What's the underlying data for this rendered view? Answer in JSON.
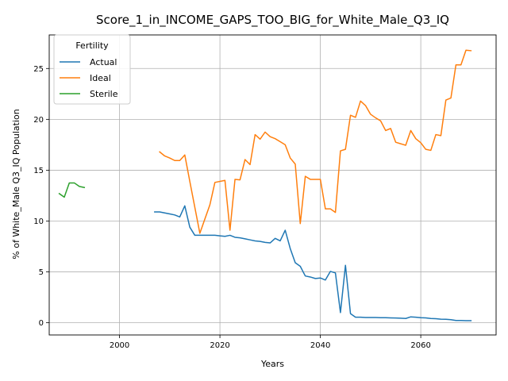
{
  "chart_data": {
    "type": "line",
    "title": "Score_1_in_INCOME_GAPS_TOO_BIG_for_White_Male_Q3_IQ",
    "xlabel": "Years",
    "ylabel": "% of White_Male Q3_IQ Population",
    "xlim": [
      1986,
      2075
    ],
    "ylim": [
      -1.2,
      28.3
    ],
    "xticks": [
      2000,
      2020,
      2040,
      2060
    ],
    "yticks": [
      0,
      5,
      10,
      15,
      20,
      25
    ],
    "grid": true,
    "legend": {
      "title": "Fertility",
      "position": "top-left"
    },
    "series": [
      {
        "name": "Actual",
        "color": "#1f77b4",
        "points": [
          [
            2007,
            10.9
          ],
          [
            2008,
            10.9
          ],
          [
            2009,
            10.8
          ],
          [
            2010,
            10.7
          ],
          [
            2011,
            10.6
          ],
          [
            2012,
            10.4
          ],
          [
            2013,
            11.5
          ],
          [
            2014,
            9.4
          ],
          [
            2015,
            8.6
          ],
          [
            2016,
            8.6
          ],
          [
            2017,
            8.6
          ],
          [
            2018,
            8.6
          ],
          [
            2019,
            8.6
          ],
          [
            2020,
            8.55
          ],
          [
            2021,
            8.5
          ],
          [
            2022,
            8.6
          ],
          [
            2023,
            8.4
          ],
          [
            2024,
            8.35
          ],
          [
            2025,
            8.25
          ],
          [
            2026,
            8.15
          ],
          [
            2027,
            8.05
          ],
          [
            2028,
            8.0
          ],
          [
            2029,
            7.9
          ],
          [
            2030,
            7.85
          ],
          [
            2031,
            8.3
          ],
          [
            2032,
            8.05
          ],
          [
            2033,
            9.1
          ],
          [
            2034,
            7.3
          ],
          [
            2035,
            5.9
          ],
          [
            2036,
            5.55
          ],
          [
            2037,
            4.6
          ],
          [
            2038,
            4.5
          ],
          [
            2039,
            4.35
          ],
          [
            2040,
            4.4
          ],
          [
            2041,
            4.2
          ],
          [
            2042,
            5.05
          ],
          [
            2043,
            4.9
          ],
          [
            2044,
            1.0
          ],
          [
            2045,
            5.65
          ],
          [
            2046,
            0.9
          ],
          [
            2047,
            0.55
          ],
          [
            2048,
            0.55
          ],
          [
            2049,
            0.52
          ],
          [
            2050,
            0.52
          ],
          [
            2051,
            0.52
          ],
          [
            2052,
            0.5
          ],
          [
            2053,
            0.5
          ],
          [
            2054,
            0.48
          ],
          [
            2055,
            0.47
          ],
          [
            2056,
            0.45
          ],
          [
            2057,
            0.42
          ],
          [
            2058,
            0.58
          ],
          [
            2059,
            0.55
          ],
          [
            2060,
            0.5
          ],
          [
            2061,
            0.48
          ],
          [
            2062,
            0.42
          ],
          [
            2063,
            0.4
          ],
          [
            2064,
            0.35
          ],
          [
            2065,
            0.34
          ],
          [
            2066,
            0.3
          ],
          [
            2067,
            0.22
          ],
          [
            2068,
            0.22
          ],
          [
            2069,
            0.2
          ],
          [
            2070,
            0.2
          ]
        ]
      },
      {
        "name": "Ideal",
        "color": "#ff7f0e",
        "points": [
          [
            2008,
            16.8
          ],
          [
            2009,
            16.4
          ],
          [
            2010,
            16.2
          ],
          [
            2011,
            15.95
          ],
          [
            2012,
            15.95
          ],
          [
            2013,
            16.5
          ],
          [
            2014,
            13.9
          ],
          [
            2016,
            8.8
          ],
          [
            2018,
            11.6
          ],
          [
            2019,
            13.8
          ],
          [
            2021,
            14.0
          ],
          [
            2022,
            9.1
          ],
          [
            2023,
            14.1
          ],
          [
            2024,
            14.05
          ],
          [
            2025,
            16.05
          ],
          [
            2026,
            15.55
          ],
          [
            2027,
            18.5
          ],
          [
            2028,
            18.05
          ],
          [
            2029,
            18.75
          ],
          [
            2030,
            18.3
          ],
          [
            2031,
            18.1
          ],
          [
            2032,
            17.8
          ],
          [
            2033,
            17.5
          ],
          [
            2034,
            16.2
          ],
          [
            2035,
            15.6
          ],
          [
            2036,
            9.75
          ],
          [
            2037,
            14.4
          ],
          [
            2038,
            14.1
          ],
          [
            2039,
            14.1
          ],
          [
            2040,
            14.1
          ],
          [
            2041,
            11.2
          ],
          [
            2042,
            11.2
          ],
          [
            2043,
            10.85
          ],
          [
            2044,
            16.9
          ],
          [
            2045,
            17.05
          ],
          [
            2046,
            20.4
          ],
          [
            2047,
            20.2
          ],
          [
            2048,
            21.8
          ],
          [
            2049,
            21.35
          ],
          [
            2050,
            20.5
          ],
          [
            2051,
            20.15
          ],
          [
            2052,
            19.85
          ],
          [
            2053,
            18.9
          ],
          [
            2054,
            19.1
          ],
          [
            2055,
            17.75
          ],
          [
            2056,
            17.6
          ],
          [
            2057,
            17.45
          ],
          [
            2058,
            18.9
          ],
          [
            2059,
            18.1
          ],
          [
            2060,
            17.7
          ],
          [
            2061,
            17.05
          ],
          [
            2062,
            16.95
          ],
          [
            2063,
            18.5
          ],
          [
            2064,
            18.4
          ],
          [
            2065,
            21.9
          ],
          [
            2066,
            22.1
          ],
          [
            2067,
            25.35
          ],
          [
            2068,
            25.35
          ],
          [
            2069,
            26.8
          ],
          [
            2070,
            26.75
          ]
        ]
      },
      {
        "name": "Sterile",
        "color": "#2ca02c",
        "points": [
          [
            1988,
            12.7
          ],
          [
            1989,
            12.35
          ],
          [
            1990,
            13.75
          ],
          [
            1991,
            13.75
          ],
          [
            1992,
            13.4
          ],
          [
            1993,
            13.3
          ]
        ]
      }
    ]
  }
}
